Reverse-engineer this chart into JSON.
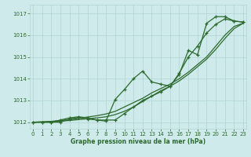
{
  "xlabel": "Graphe pression niveau de la mer (hPa)",
  "ylim": [
    1011.7,
    1017.4
  ],
  "xlim": [
    -0.3,
    23.3
  ],
  "xticks": [
    0,
    1,
    2,
    3,
    4,
    5,
    6,
    7,
    8,
    9,
    10,
    11,
    12,
    13,
    14,
    15,
    16,
    17,
    18,
    19,
    20,
    21,
    22,
    23
  ],
  "yticks": [
    1012,
    1013,
    1014,
    1015,
    1016,
    1017
  ],
  "bg_color": "#ceeaea",
  "grid_color": "#b0d4d4",
  "line_color": "#2d6a2d",
  "line_smooth1": [
    1012.0,
    1012.02,
    1012.04,
    1012.08,
    1012.12,
    1012.18,
    1012.24,
    1012.3,
    1012.38,
    1012.5,
    1012.7,
    1012.9,
    1013.1,
    1013.35,
    1013.55,
    1013.75,
    1014.0,
    1014.3,
    1014.65,
    1015.0,
    1015.5,
    1016.0,
    1016.4,
    1016.55
  ],
  "line_smooth2": [
    1012.0,
    1012.01,
    1012.02,
    1012.05,
    1012.08,
    1012.12,
    1012.16,
    1012.2,
    1012.25,
    1012.35,
    1012.5,
    1012.7,
    1012.95,
    1013.2,
    1013.45,
    1013.65,
    1013.9,
    1014.2,
    1014.55,
    1014.9,
    1015.35,
    1015.85,
    1016.3,
    1016.55
  ],
  "line_marker1": [
    1012.0,
    1012.0,
    1012.0,
    1012.0,
    1012.15,
    1012.2,
    1012.15,
    1012.1,
    1012.05,
    1013.05,
    1013.5,
    1014.0,
    1014.35,
    1013.85,
    1013.75,
    1013.65,
    1014.2,
    1015.3,
    1015.1,
    1016.55,
    1016.85,
    1016.85,
    1016.65,
    1016.6
  ],
  "line_marker2": [
    1012.0,
    1012.0,
    1012.0,
    1012.1,
    1012.2,
    1012.25,
    1012.2,
    1012.1,
    1012.1,
    1012.1,
    1012.4,
    1012.7,
    1013.0,
    1013.2,
    1013.4,
    1013.65,
    1014.25,
    1015.0,
    1015.5,
    1016.1,
    1016.5,
    1016.75,
    1016.65,
    1016.6
  ]
}
